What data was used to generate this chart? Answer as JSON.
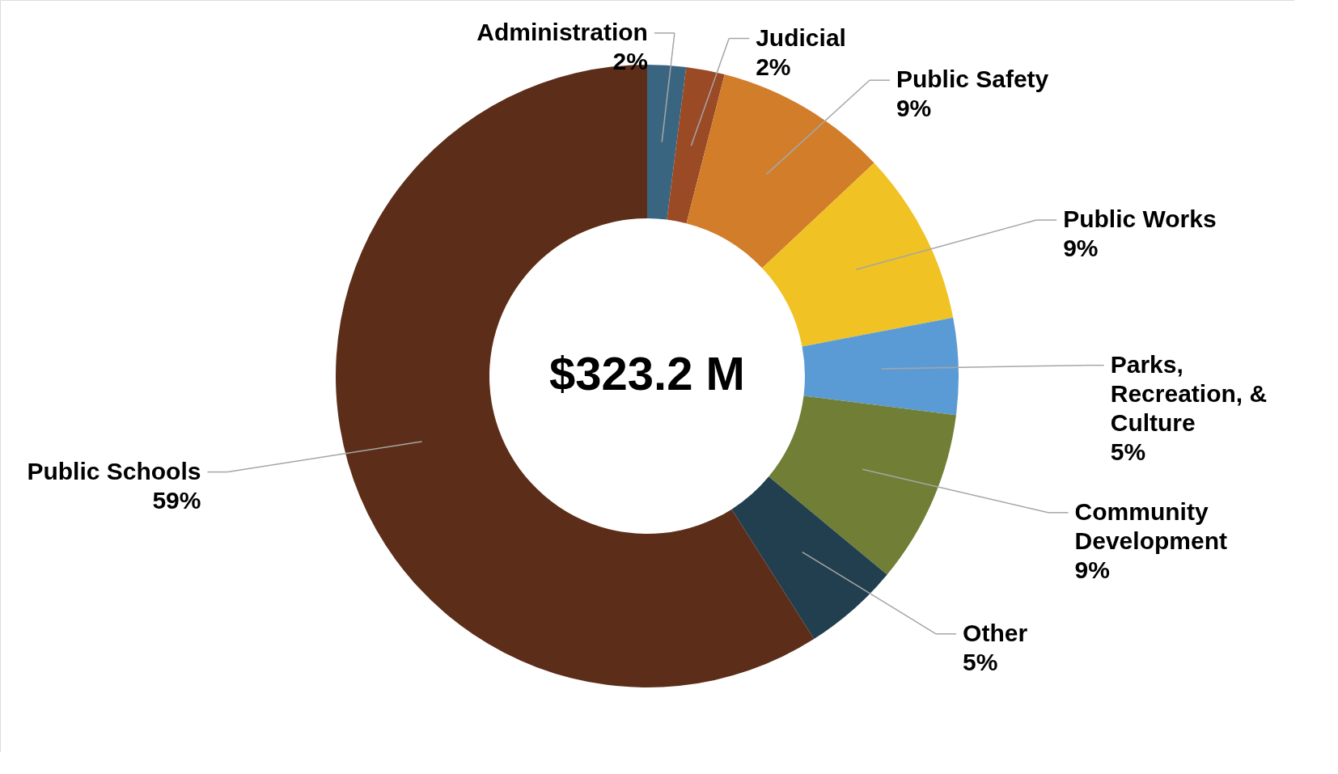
{
  "chart_data": {
    "type": "donut",
    "categories": [
      "Administration",
      "Judicial",
      "Public Safety",
      "Public Works",
      "Parks, Recreation, & Culture",
      "Community Development",
      "Other",
      "Public Schools"
    ],
    "values": [
      2,
      2,
      9,
      9,
      5,
      9,
      5,
      59
    ],
    "colors": [
      "#3a6581",
      "#9a4a25",
      "#d27d2a",
      "#f0c224",
      "#5b9bd5",
      "#707f35",
      "#223f4f",
      "#5c2e1a"
    ],
    "value_labels": [
      "2%",
      "2%",
      "9%",
      "9%",
      "5%",
      "9%",
      "5%",
      "59%"
    ],
    "annotations": [
      "$323.2 M"
    ]
  }
}
